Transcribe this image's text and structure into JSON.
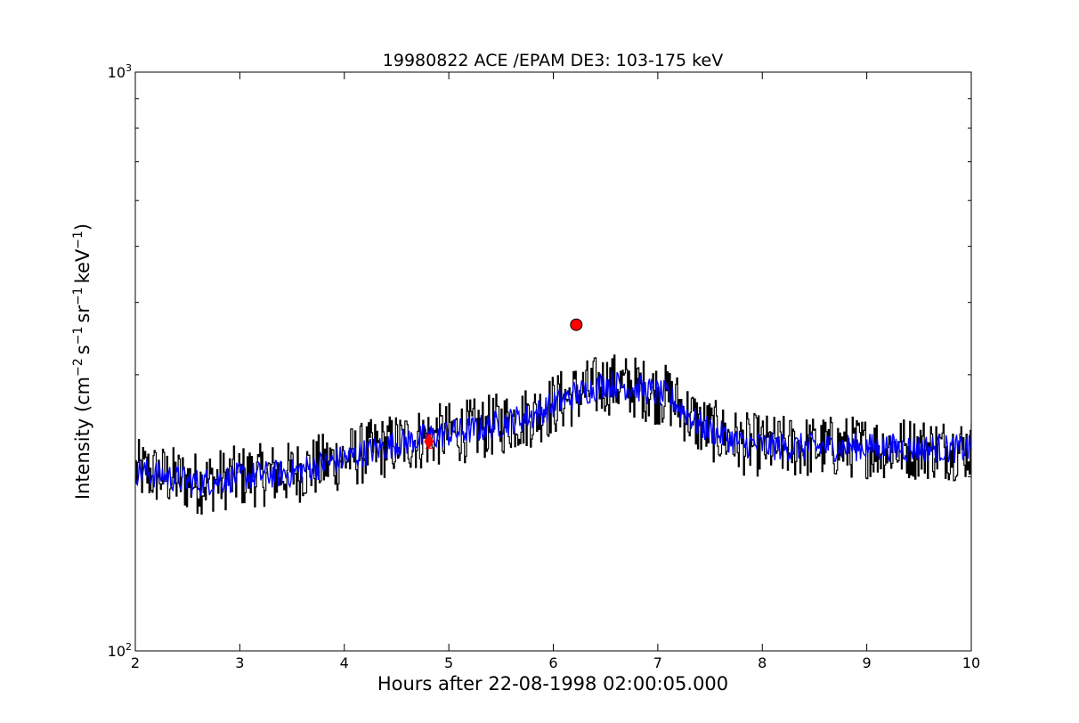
{
  "chart_data": {
    "type": "line",
    "title": "19980822 ACE /EPAM DE3: 103-175 keV",
    "xlabel": "Hours after 22-08-1998 02:00:05.000",
    "ylabel": "Intensity (cm⁻² s⁻¹ sr⁻¹ keV⁻¹)",
    "ylabel_parts": {
      "p1": "Intensity (cm",
      "e1": "−2",
      "p2": "s",
      "e2": "−1",
      "p3": "sr",
      "e3": "−1",
      "p4": "keV",
      "e4": "−1",
      "p5": ")"
    },
    "xlim": [
      2,
      10
    ],
    "ylim": [
      100,
      1000
    ],
    "yscale": "log",
    "grid": false,
    "x_ticks": [
      2,
      3,
      4,
      5,
      6,
      7,
      8,
      9,
      10
    ],
    "x_tick_labels": [
      "2",
      "3",
      "4",
      "5",
      "6",
      "7",
      "8",
      "9",
      "10"
    ],
    "y_major_ticks": [
      {
        "value": 100,
        "base": "10",
        "exp": "2"
      },
      {
        "value": 1000,
        "base": "10",
        "exp": "3"
      }
    ],
    "y_minor_ticks": [
      200,
      300,
      400,
      500,
      600,
      700,
      800,
      900
    ],
    "series": [
      {
        "color": "#000000",
        "style": "steps",
        "x_start": 2.0,
        "x_step": 0.01,
        "trend_x": [
          2.0,
          2.6,
          3.0,
          3.5,
          4.0,
          4.5,
          4.9,
          5.3,
          5.8,
          6.1,
          6.5,
          6.8,
          7.1,
          7.4,
          7.8,
          8.2,
          9.0,
          10.0
        ],
        "trend_y": [
          205,
          195,
          200,
          203,
          215,
          228,
          236,
          242,
          255,
          272,
          290,
          285,
          275,
          245,
          228,
          225,
          225,
          223
        ],
        "noise_log10_amplitude": 0.055
      },
      {
        "color": "#0000ff",
        "style": "line",
        "x_start": 2.0,
        "x_step": 0.01,
        "trend_x": [
          2.0,
          2.6,
          3.0,
          3.5,
          4.0,
          4.5,
          4.9,
          5.3,
          5.8,
          6.1,
          6.5,
          6.8,
          7.1,
          7.4,
          7.8,
          8.2,
          9.0,
          10.0
        ],
        "trend_y": [
          205,
          195,
          200,
          203,
          215,
          228,
          236,
          242,
          255,
          272,
          290,
          285,
          275,
          245,
          228,
          225,
          225,
          223
        ],
        "noise_log10_amplitude": 0.025
      }
    ],
    "markers": [
      {
        "shape": "circle",
        "x": 6.22,
        "y": 366,
        "color": "#ff0000"
      },
      {
        "shape": "diamond",
        "x": 4.81,
        "y": 230,
        "color": "#ff0000"
      }
    ],
    "error_bars": [
      {
        "x": 4.81,
        "y_low": 224,
        "y_high": 236,
        "color": "#ff0000"
      }
    ],
    "colors": {
      "line_main": "#000000",
      "line_smooth": "#0000ff",
      "marker": "#ff0000",
      "marker_edge": "#000000",
      "axes": "#000000"
    }
  }
}
